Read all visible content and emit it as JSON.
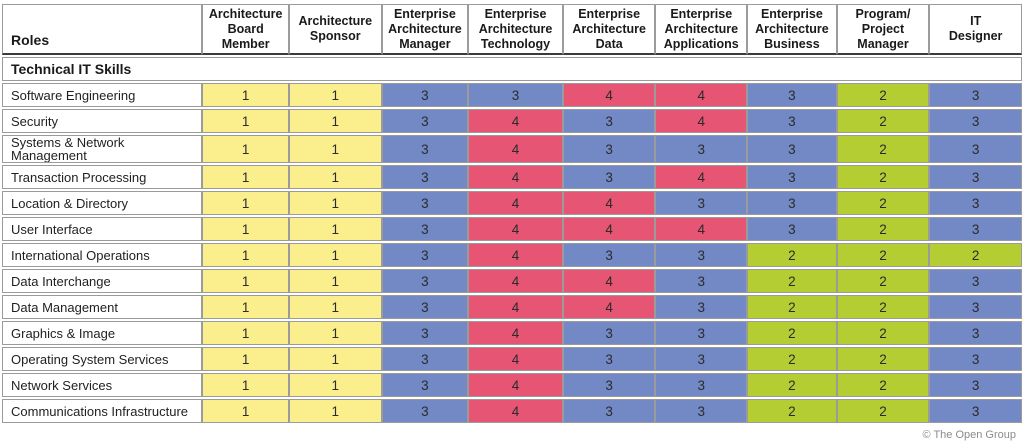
{
  "matrix": {
    "corner_header": "Roles",
    "section_header": "Technical IT Skills",
    "column_headers": [
      "Architecture\nBoard\nMember",
      "Architecture\nSponsor",
      "Enterprise\nArchitecture\nManager",
      "Enterprise\nArchitecture\nTechnology",
      "Enterprise\nArchitecture\nData",
      "Enterprise\nArchitecture\nApplications",
      "Enterprise\nArchitecture\nBusiness",
      "Program/\nProject\nManager",
      "IT\nDesigner"
    ],
    "rating_colors": {
      "1": "#FBEE8D",
      "2": "#B4CD33",
      "3": "#7389C5",
      "4": "#E65573"
    },
    "rows": [
      {
        "label": "Software Engineering",
        "values": [
          1,
          1,
          3,
          3,
          4,
          4,
          3,
          2,
          3
        ]
      },
      {
        "label": "Security",
        "values": [
          1,
          1,
          3,
          4,
          3,
          4,
          3,
          2,
          3
        ]
      },
      {
        "label": "Systems & Network Management",
        "values": [
          1,
          1,
          3,
          4,
          3,
          3,
          3,
          2,
          3
        ]
      },
      {
        "label": "Transaction Processing",
        "values": [
          1,
          1,
          3,
          4,
          3,
          4,
          3,
          2,
          3
        ]
      },
      {
        "label": "Location & Directory",
        "values": [
          1,
          1,
          3,
          4,
          4,
          3,
          3,
          2,
          3
        ]
      },
      {
        "label": "User Interface",
        "values": [
          1,
          1,
          3,
          4,
          4,
          4,
          3,
          2,
          3
        ]
      },
      {
        "label": "International Operations",
        "values": [
          1,
          1,
          3,
          4,
          3,
          3,
          2,
          2,
          2
        ]
      },
      {
        "label": "Data Interchange",
        "values": [
          1,
          1,
          3,
          4,
          4,
          3,
          2,
          2,
          3
        ]
      },
      {
        "label": "Data Management",
        "values": [
          1,
          1,
          3,
          4,
          4,
          3,
          2,
          2,
          3
        ]
      },
      {
        "label": "Graphics & Image",
        "values": [
          1,
          1,
          3,
          4,
          3,
          3,
          2,
          2,
          3
        ]
      },
      {
        "label": "Operating System Services",
        "values": [
          1,
          1,
          3,
          4,
          3,
          3,
          2,
          2,
          3
        ]
      },
      {
        "label": "Network Services",
        "values": [
          1,
          1,
          3,
          4,
          3,
          3,
          2,
          2,
          3
        ]
      },
      {
        "label": "Communications Infrastructure",
        "values": [
          1,
          1,
          3,
          4,
          3,
          3,
          2,
          2,
          3
        ]
      }
    ]
  },
  "footer": {
    "credit": "© The Open Group"
  }
}
